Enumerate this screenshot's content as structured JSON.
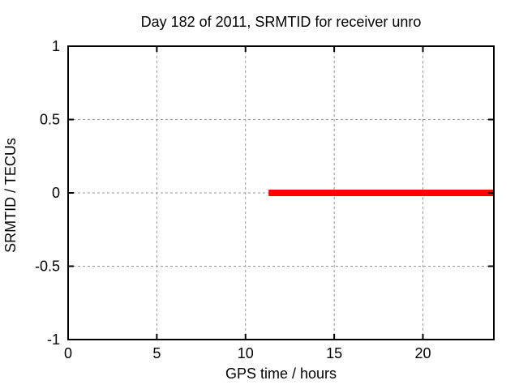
{
  "chart_data": {
    "type": "line",
    "title": "Day 182 of 2011, SRMTID for receiver unro",
    "xlabel": "GPS time / hours",
    "ylabel": "SRMTID / TECUs",
    "xlim": [
      0,
      24
    ],
    "ylim": [
      -1,
      1
    ],
    "xticks": [
      0,
      5,
      10,
      15,
      20
    ],
    "xtick_labels": [
      "0",
      "5",
      "10",
      "15",
      "20"
    ],
    "yticks": [
      -1,
      -0.5,
      0,
      0.5,
      1
    ],
    "ytick_labels": [
      "-1",
      "-0.5",
      "0",
      "0.5",
      "1"
    ],
    "grid": true,
    "grid_color": "#999999",
    "axis_color": "#000000",
    "background_color": "#ffffff",
    "legend": null,
    "series": [
      {
        "name": "SRMTID",
        "color": "#ff0000",
        "linewidth": 8,
        "x": [
          11.3,
          24
        ],
        "y": [
          0,
          0
        ]
      }
    ]
  }
}
